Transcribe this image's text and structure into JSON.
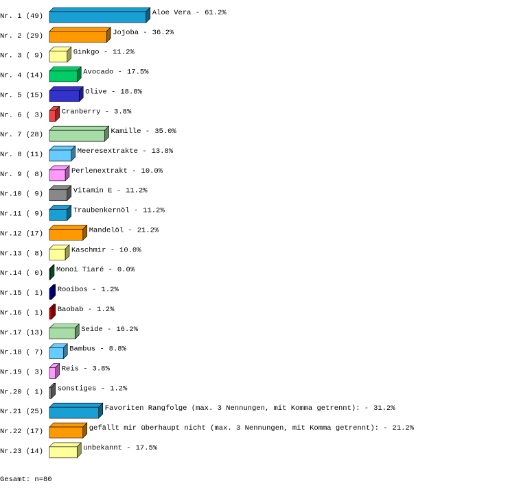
{
  "chart_data": {
    "type": "bar",
    "orientation": "horizontal",
    "row_labels": [
      "Nr. 1 (49)",
      "Nr. 2 (29)",
      "Nr. 3 ( 9)",
      "Nr. 4 (14)",
      "Nr. 5 (15)",
      "Nr. 6 ( 3)",
      "Nr. 7 (28)",
      "Nr. 8 (11)",
      "Nr. 9 ( 8)",
      "Nr.10 ( 9)",
      "Nr.11 ( 9)",
      "Nr.12 (17)",
      "Nr.13 ( 8)",
      "Nr.14 ( 0)",
      "Nr.15 ( 1)",
      "Nr.16 ( 1)",
      "Nr.17 (13)",
      "Nr.18 ( 7)",
      "Nr.19 ( 3)",
      "Nr.20 ( 1)",
      "Nr.21 (25)",
      "Nr.22 (17)",
      "Nr.23 (14)"
    ],
    "categories": [
      "Aloe Vera -",
      "Jojoba -",
      "Ginkgo -",
      "Avocado -",
      "Olive -",
      "Cranberry -",
      "Kamille -",
      "Meeresextrakte -",
      "Perlenextrakt -",
      "Vitamin E -",
      "Traubenkernöl -",
      "Mandelöl -",
      "Kaschmir -",
      "Monoi Tiaré -",
      "Rooibos -",
      "Baobab -",
      "Seide -",
      "Bambus -",
      "Reis -",
      "sonstiges -",
      "Favoriten Rangfolge (max. 3 Nennungen, mit Komma getrennt): -",
      "gefällt mir überhaupt nicht (max. 3 Nennungen, mit Komma getrennt): -",
      "unbekannt -"
    ],
    "values": [
      61.2,
      36.2,
      11.2,
      17.5,
      18.8,
      3.8,
      35.0,
      13.8,
      10.0,
      11.2,
      11.2,
      21.2,
      10.0,
      0.0,
      1.2,
      1.2,
      16.2,
      8.8,
      3.8,
      1.2,
      31.2,
      21.2,
      17.5
    ],
    "value_labels": [
      "61.2%",
      "36.2%",
      "11.2%",
      "17.5%",
      "18.8%",
      "3.8%",
      "35.0%",
      "13.8%",
      "10.0%",
      "11.2%",
      "11.2%",
      "21.2%",
      "10.0%",
      "0.0%",
      "1.2%",
      "1.2%",
      "16.2%",
      "8.8%",
      "3.8%",
      "1.2%",
      "31.2%",
      "21.2%",
      "17.5%"
    ],
    "colors": [
      "#1a9fd4",
      "#ff9900",
      "#ffff99",
      "#00cc66",
      "#3333cc",
      "#ee4444",
      "#a6dca6",
      "#66ccff",
      "#ff99ff",
      "#888888",
      "#1a9fd4",
      "#ff9900",
      "#ffff99",
      "#008040",
      "#000099",
      "#cc0000",
      "#a6dca6",
      "#66ccff",
      "#ff99ff",
      "#888888",
      "#1a9fd4",
      "#ff9900",
      "#ffff99"
    ],
    "footer": "Gesamt: n=80"
  }
}
